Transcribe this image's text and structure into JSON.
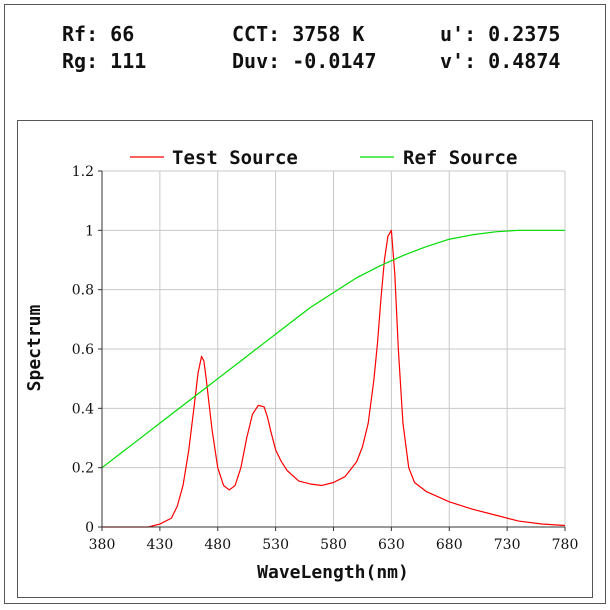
{
  "metrics": {
    "rf": "Rf: 66",
    "rg": "Rg: 111",
    "cct": "CCT: 3758 K",
    "duv": "Duv: -0.0147",
    "u_prime": "u': 0.2375",
    "v_prime": "v': 0.4874"
  },
  "chart_data": {
    "type": "line",
    "title": "",
    "xlabel": "WaveLength(nm)",
    "ylabel": "Spectrum",
    "xlim": [
      380,
      780
    ],
    "ylim": [
      0,
      1.2
    ],
    "xticks": [
      "380",
      "430",
      "480",
      "530",
      "580",
      "630",
      "680",
      "730",
      "780"
    ],
    "yticks": [
      "0",
      "0.2",
      "0.4",
      "0.6",
      "0.8",
      "1",
      "1.2"
    ],
    "grid": true,
    "legend": "top",
    "series": [
      {
        "name": "Test Source",
        "color": "#ff0000",
        "x": [
          380,
          400,
          420,
          430,
          440,
          445,
          450,
          455,
          460,
          463,
          466,
          468,
          470,
          475,
          480,
          485,
          490,
          495,
          500,
          505,
          510,
          515,
          520,
          523,
          526,
          530,
          535,
          540,
          550,
          560,
          570,
          580,
          590,
          600,
          605,
          610,
          615,
          618,
          621,
          624,
          627,
          630,
          633,
          636,
          640,
          645,
          650,
          660,
          680,
          700,
          720,
          740,
          760,
          780
        ],
        "y": [
          0.0,
          0.0,
          0.0,
          0.01,
          0.03,
          0.07,
          0.14,
          0.26,
          0.42,
          0.52,
          0.575,
          0.56,
          0.5,
          0.33,
          0.2,
          0.14,
          0.125,
          0.14,
          0.2,
          0.3,
          0.38,
          0.41,
          0.405,
          0.37,
          0.32,
          0.26,
          0.22,
          0.19,
          0.155,
          0.145,
          0.14,
          0.15,
          0.17,
          0.22,
          0.27,
          0.35,
          0.5,
          0.62,
          0.77,
          0.9,
          0.98,
          1.0,
          0.85,
          0.6,
          0.35,
          0.2,
          0.15,
          0.12,
          0.085,
          0.06,
          0.04,
          0.02,
          0.01,
          0.005
        ]
      },
      {
        "name": "Ref Source",
        "color": "#00dd00",
        "x": [
          380,
          400,
          420,
          440,
          460,
          480,
          500,
          520,
          540,
          560,
          580,
          600,
          620,
          640,
          660,
          680,
          700,
          720,
          740,
          760,
          780
        ],
        "y": [
          0.2,
          0.26,
          0.32,
          0.38,
          0.44,
          0.5,
          0.56,
          0.62,
          0.68,
          0.74,
          0.79,
          0.84,
          0.88,
          0.915,
          0.945,
          0.97,
          0.985,
          0.995,
          1.0,
          1.0,
          1.0
        ]
      }
    ]
  }
}
